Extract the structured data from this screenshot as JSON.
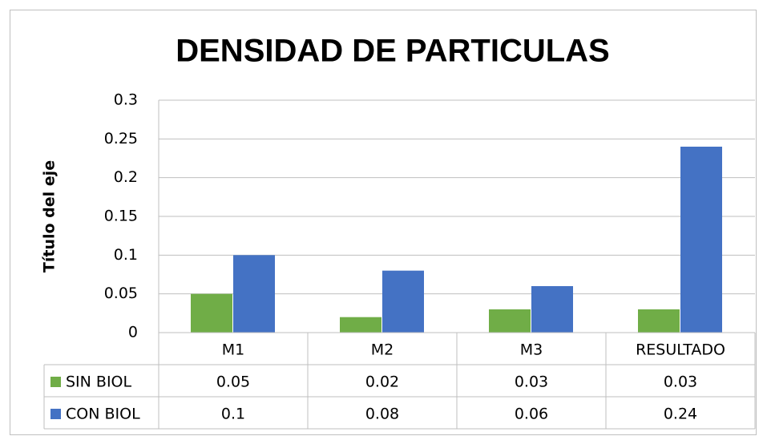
{
  "chart_data": {
    "type": "bar",
    "title": "DENSIDAD DE PARTICULAS",
    "y_label": "Título del eje",
    "categories": [
      "M1",
      "M2",
      "M3",
      "RESULTADO"
    ],
    "series": [
      {
        "name": "SIN BIOL",
        "color": "#70ad47",
        "values": [
          0.05,
          0.02,
          0.03,
          0.03
        ]
      },
      {
        "name": "CON BIOL",
        "color": "#4472c4",
        "values": [
          0.1,
          0.08,
          0.06,
          0.24
        ]
      }
    ],
    "ylim": [
      0,
      0.3
    ],
    "yticks": [
      0,
      0.05,
      0.1,
      0.15,
      0.2,
      0.25,
      0.3
    ],
    "grid": true,
    "data_table": true
  }
}
